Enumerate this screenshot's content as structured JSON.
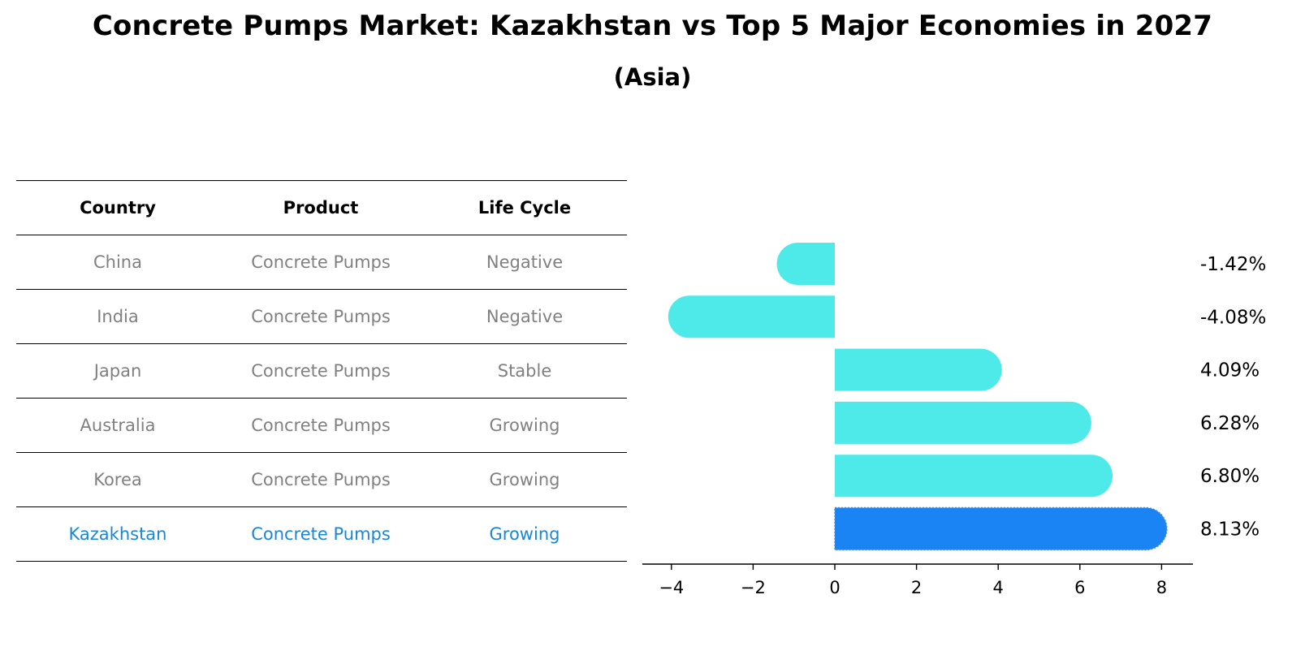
{
  "title": "Concrete Pumps Market: Kazakhstan vs Top 5 Major Economies in 2027",
  "subtitle": "(Asia)",
  "table": {
    "headers": [
      "Country",
      "Product",
      "Life Cycle"
    ],
    "rows": [
      [
        "China",
        "Concrete Pumps",
        "Negative"
      ],
      [
        "India",
        "Concrete Pumps",
        "Negative"
      ],
      [
        "Japan",
        "Concrete Pumps",
        "Stable"
      ],
      [
        "Australia",
        "Concrete Pumps",
        "Growing"
      ],
      [
        "Korea",
        "Concrete Pumps",
        "Growing"
      ],
      [
        "Kazakhstan",
        "Concrete Pumps",
        "Growing"
      ]
    ],
    "highlight_row": 5
  },
  "chart_data": {
    "type": "bar",
    "orientation": "horizontal",
    "categories": [
      "China",
      "India",
      "Japan",
      "Australia",
      "Korea",
      "Kazakhstan"
    ],
    "values": [
      -1.42,
      -4.08,
      4.09,
      6.28,
      6.8,
      8.13
    ],
    "value_labels": [
      "-1.42%",
      "-4.08%",
      "4.09%",
      "6.28%",
      "6.80%",
      "8.13%"
    ],
    "xlim": [
      -4.6,
      8.7
    ],
    "xticks": [
      -4,
      -2,
      0,
      2,
      4,
      6,
      8
    ],
    "xtick_labels": [
      "−4",
      "−2",
      "0",
      "2",
      "4",
      "6",
      "8"
    ],
    "highlight": "Kazakhstan",
    "colors": {
      "bar": "#4eeaea",
      "highlight": "#1a84f5"
    },
    "grid": false
  }
}
